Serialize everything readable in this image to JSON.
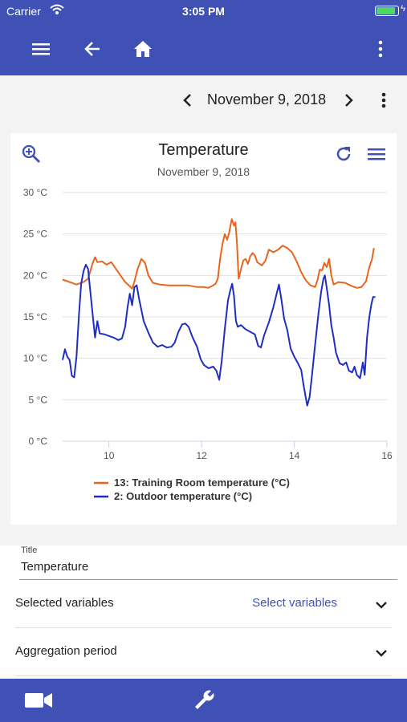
{
  "status_bar": {
    "carrier": "Carrier",
    "time": "3:05 PM",
    "battery_level": 0.9
  },
  "app_bar": {
    "icons": [
      "menu-icon",
      "back-arrow-icon",
      "home-icon",
      "more-vert-icon"
    ]
  },
  "date_nav": {
    "date": "November 9, 2018"
  },
  "colors": {
    "primary": "#3f51b5",
    "series_1": "#e8651f",
    "series_2": "#1f2ec0"
  },
  "chart_data": {
    "type": "line",
    "title": "Temperature",
    "subtitle": "November 9, 2018",
    "xlim": [
      9,
      16
    ],
    "ylim": [
      0,
      30
    ],
    "x_ticks": [
      10,
      12,
      14,
      16
    ],
    "x_tick_labels": [
      "10",
      "12",
      "14",
      "16"
    ],
    "y_ticks": [
      0,
      5,
      10,
      15,
      20,
      25,
      30
    ],
    "y_tick_labels": [
      "0 °C",
      "5 °C",
      "10 °C",
      "15 °C",
      "20 °C",
      "25 °C",
      "30 °C"
    ],
    "grid": true,
    "legend_position": "bottom",
    "series": [
      {
        "name": "13: Training Room temperature (°C)",
        "color": "#e8651f",
        "points": [
          [
            9.0,
            19.5
          ],
          [
            9.15,
            19.2
          ],
          [
            9.3,
            18.9
          ],
          [
            9.45,
            19.2
          ],
          [
            9.55,
            19.6
          ],
          [
            9.65,
            21.5
          ],
          [
            9.7,
            22.2
          ],
          [
            9.75,
            21.6
          ],
          [
            9.85,
            21.7
          ],
          [
            9.95,
            21.3
          ],
          [
            10.05,
            21.6
          ],
          [
            10.15,
            20.8
          ],
          [
            10.25,
            20.0
          ],
          [
            10.35,
            19.2
          ],
          [
            10.45,
            18.7
          ],
          [
            10.5,
            18.4
          ],
          [
            10.55,
            19.3
          ],
          [
            10.62,
            20.8
          ],
          [
            10.7,
            22.0
          ],
          [
            10.78,
            21.5
          ],
          [
            10.85,
            20.0
          ],
          [
            10.95,
            19.1
          ],
          [
            11.1,
            18.9
          ],
          [
            11.3,
            18.8
          ],
          [
            11.5,
            18.8
          ],
          [
            11.7,
            18.8
          ],
          [
            11.9,
            18.6
          ],
          [
            12.05,
            18.6
          ],
          [
            12.15,
            18.5
          ],
          [
            12.25,
            18.8
          ],
          [
            12.3,
            19.0
          ],
          [
            12.35,
            19.6
          ],
          [
            12.4,
            22.0
          ],
          [
            12.45,
            23.8
          ],
          [
            12.5,
            25.0
          ],
          [
            12.55,
            24.3
          ],
          [
            12.6,
            25.3
          ],
          [
            12.65,
            26.8
          ],
          [
            12.7,
            26.0
          ],
          [
            12.73,
            26.4
          ],
          [
            12.76,
            24.2
          ],
          [
            12.8,
            19.6
          ],
          [
            12.85,
            20.8
          ],
          [
            12.9,
            21.8
          ],
          [
            12.95,
            22.0
          ],
          [
            13.0,
            21.4
          ],
          [
            13.05,
            22.3
          ],
          [
            13.1,
            22.7
          ],
          [
            13.15,
            22.4
          ],
          [
            13.2,
            21.6
          ],
          [
            13.3,
            21.2
          ],
          [
            13.38,
            21.8
          ],
          [
            13.45,
            23.1
          ],
          [
            13.55,
            22.8
          ],
          [
            13.65,
            23.1
          ],
          [
            13.75,
            23.6
          ],
          [
            13.85,
            23.3
          ],
          [
            13.95,
            22.8
          ],
          [
            14.05,
            21.7
          ],
          [
            14.15,
            20.4
          ],
          [
            14.25,
            19.4
          ],
          [
            14.35,
            18.8
          ],
          [
            14.45,
            18.6
          ],
          [
            14.5,
            19.4
          ],
          [
            14.55,
            20.7
          ],
          [
            14.6,
            20.6
          ],
          [
            14.65,
            21.5
          ],
          [
            14.7,
            21.0
          ],
          [
            14.75,
            22.0
          ],
          [
            14.8,
            20.0
          ],
          [
            14.85,
            18.9
          ],
          [
            14.95,
            19.2
          ],
          [
            15.1,
            19.1
          ],
          [
            15.25,
            18.7
          ],
          [
            15.35,
            18.5
          ],
          [
            15.45,
            18.6
          ],
          [
            15.55,
            19.3
          ],
          [
            15.62,
            21.0
          ],
          [
            15.68,
            22.0
          ],
          [
            15.72,
            23.3
          ]
        ]
      },
      {
        "name": "2: Outdoor temperature (°C)",
        "color": "#1f2ec0",
        "points": [
          [
            9.0,
            9.8
          ],
          [
            9.05,
            11.1
          ],
          [
            9.1,
            10.2
          ],
          [
            9.15,
            9.8
          ],
          [
            9.2,
            7.9
          ],
          [
            9.25,
            7.7
          ],
          [
            9.3,
            10.2
          ],
          [
            9.35,
            15.0
          ],
          [
            9.4,
            19.0
          ],
          [
            9.45,
            20.5
          ],
          [
            9.5,
            21.3
          ],
          [
            9.55,
            20.8
          ],
          [
            9.6,
            18.0
          ],
          [
            9.65,
            15.2
          ],
          [
            9.7,
            12.5
          ],
          [
            9.75,
            14.5
          ],
          [
            9.8,
            13.0
          ],
          [
            9.9,
            12.9
          ],
          [
            10.0,
            12.7
          ],
          [
            10.1,
            12.5
          ],
          [
            10.2,
            12.2
          ],
          [
            10.28,
            12.4
          ],
          [
            10.35,
            13.8
          ],
          [
            10.4,
            16.1
          ],
          [
            10.45,
            17.8
          ],
          [
            10.5,
            16.4
          ],
          [
            10.55,
            18.6
          ],
          [
            10.6,
            18.8
          ],
          [
            10.65,
            17.2
          ],
          [
            10.75,
            14.5
          ],
          [
            10.85,
            13.1
          ],
          [
            10.95,
            11.9
          ],
          [
            11.05,
            11.4
          ],
          [
            11.15,
            11.6
          ],
          [
            11.25,
            11.3
          ],
          [
            11.35,
            11.4
          ],
          [
            11.42,
            11.9
          ],
          [
            11.5,
            13.2
          ],
          [
            11.58,
            14.1
          ],
          [
            11.65,
            14.2
          ],
          [
            11.72,
            13.8
          ],
          [
            11.8,
            12.6
          ],
          [
            11.9,
            11.4
          ],
          [
            11.98,
            9.9
          ],
          [
            12.05,
            9.2
          ],
          [
            12.15,
            8.8
          ],
          [
            12.25,
            9.0
          ],
          [
            12.32,
            8.5
          ],
          [
            12.38,
            7.4
          ],
          [
            12.43,
            9.5
          ],
          [
            12.5,
            13.5
          ],
          [
            12.57,
            17.0
          ],
          [
            12.62,
            18.2
          ],
          [
            12.66,
            19.0
          ],
          [
            12.7,
            17.5
          ],
          [
            12.74,
            14.5
          ],
          [
            12.78,
            13.8
          ],
          [
            12.85,
            14.0
          ],
          [
            12.95,
            13.5
          ],
          [
            13.05,
            13.2
          ],
          [
            13.15,
            12.9
          ],
          [
            13.22,
            11.5
          ],
          [
            13.28,
            11.3
          ],
          [
            13.35,
            12.8
          ],
          [
            13.45,
            14.3
          ],
          [
            13.55,
            16.2
          ],
          [
            13.62,
            17.8
          ],
          [
            13.67,
            18.9
          ],
          [
            13.72,
            17.2
          ],
          [
            13.78,
            14.8
          ],
          [
            13.85,
            13.4
          ],
          [
            13.92,
            11.2
          ],
          [
            14.0,
            10.2
          ],
          [
            14.08,
            9.4
          ],
          [
            14.15,
            8.6
          ],
          [
            14.2,
            6.8
          ],
          [
            14.25,
            5.2
          ],
          [
            14.28,
            4.3
          ],
          [
            14.33,
            5.3
          ],
          [
            14.38,
            7.8
          ],
          [
            14.45,
            11.6
          ],
          [
            14.52,
            15.3
          ],
          [
            14.58,
            18.0
          ],
          [
            14.63,
            19.6
          ],
          [
            14.66,
            20.0
          ],
          [
            14.7,
            18.5
          ],
          [
            14.75,
            16.5
          ],
          [
            14.8,
            14.0
          ],
          [
            14.85,
            12.5
          ],
          [
            14.9,
            10.7
          ],
          [
            14.98,
            9.4
          ],
          [
            15.05,
            9.2
          ],
          [
            15.12,
            9.5
          ],
          [
            15.18,
            8.5
          ],
          [
            15.25,
            8.3
          ],
          [
            15.3,
            9.0
          ],
          [
            15.35,
            8.0
          ],
          [
            15.42,
            7.6
          ],
          [
            15.48,
            9.5
          ],
          [
            15.52,
            8.0
          ],
          [
            15.57,
            12.5
          ],
          [
            15.62,
            15.0
          ],
          [
            15.66,
            16.4
          ],
          [
            15.7,
            17.4
          ],
          [
            15.75,
            17.4
          ]
        ]
      }
    ]
  },
  "form": {
    "title_label": "Title",
    "title_value": "Temperature",
    "selected_variables_label": "Selected variables",
    "selected_variables_link": "Select variables",
    "aggregation_label": "Aggregation period"
  },
  "bottom_bar": {
    "icons": [
      "video-camera-icon",
      "wrench-icon"
    ]
  }
}
